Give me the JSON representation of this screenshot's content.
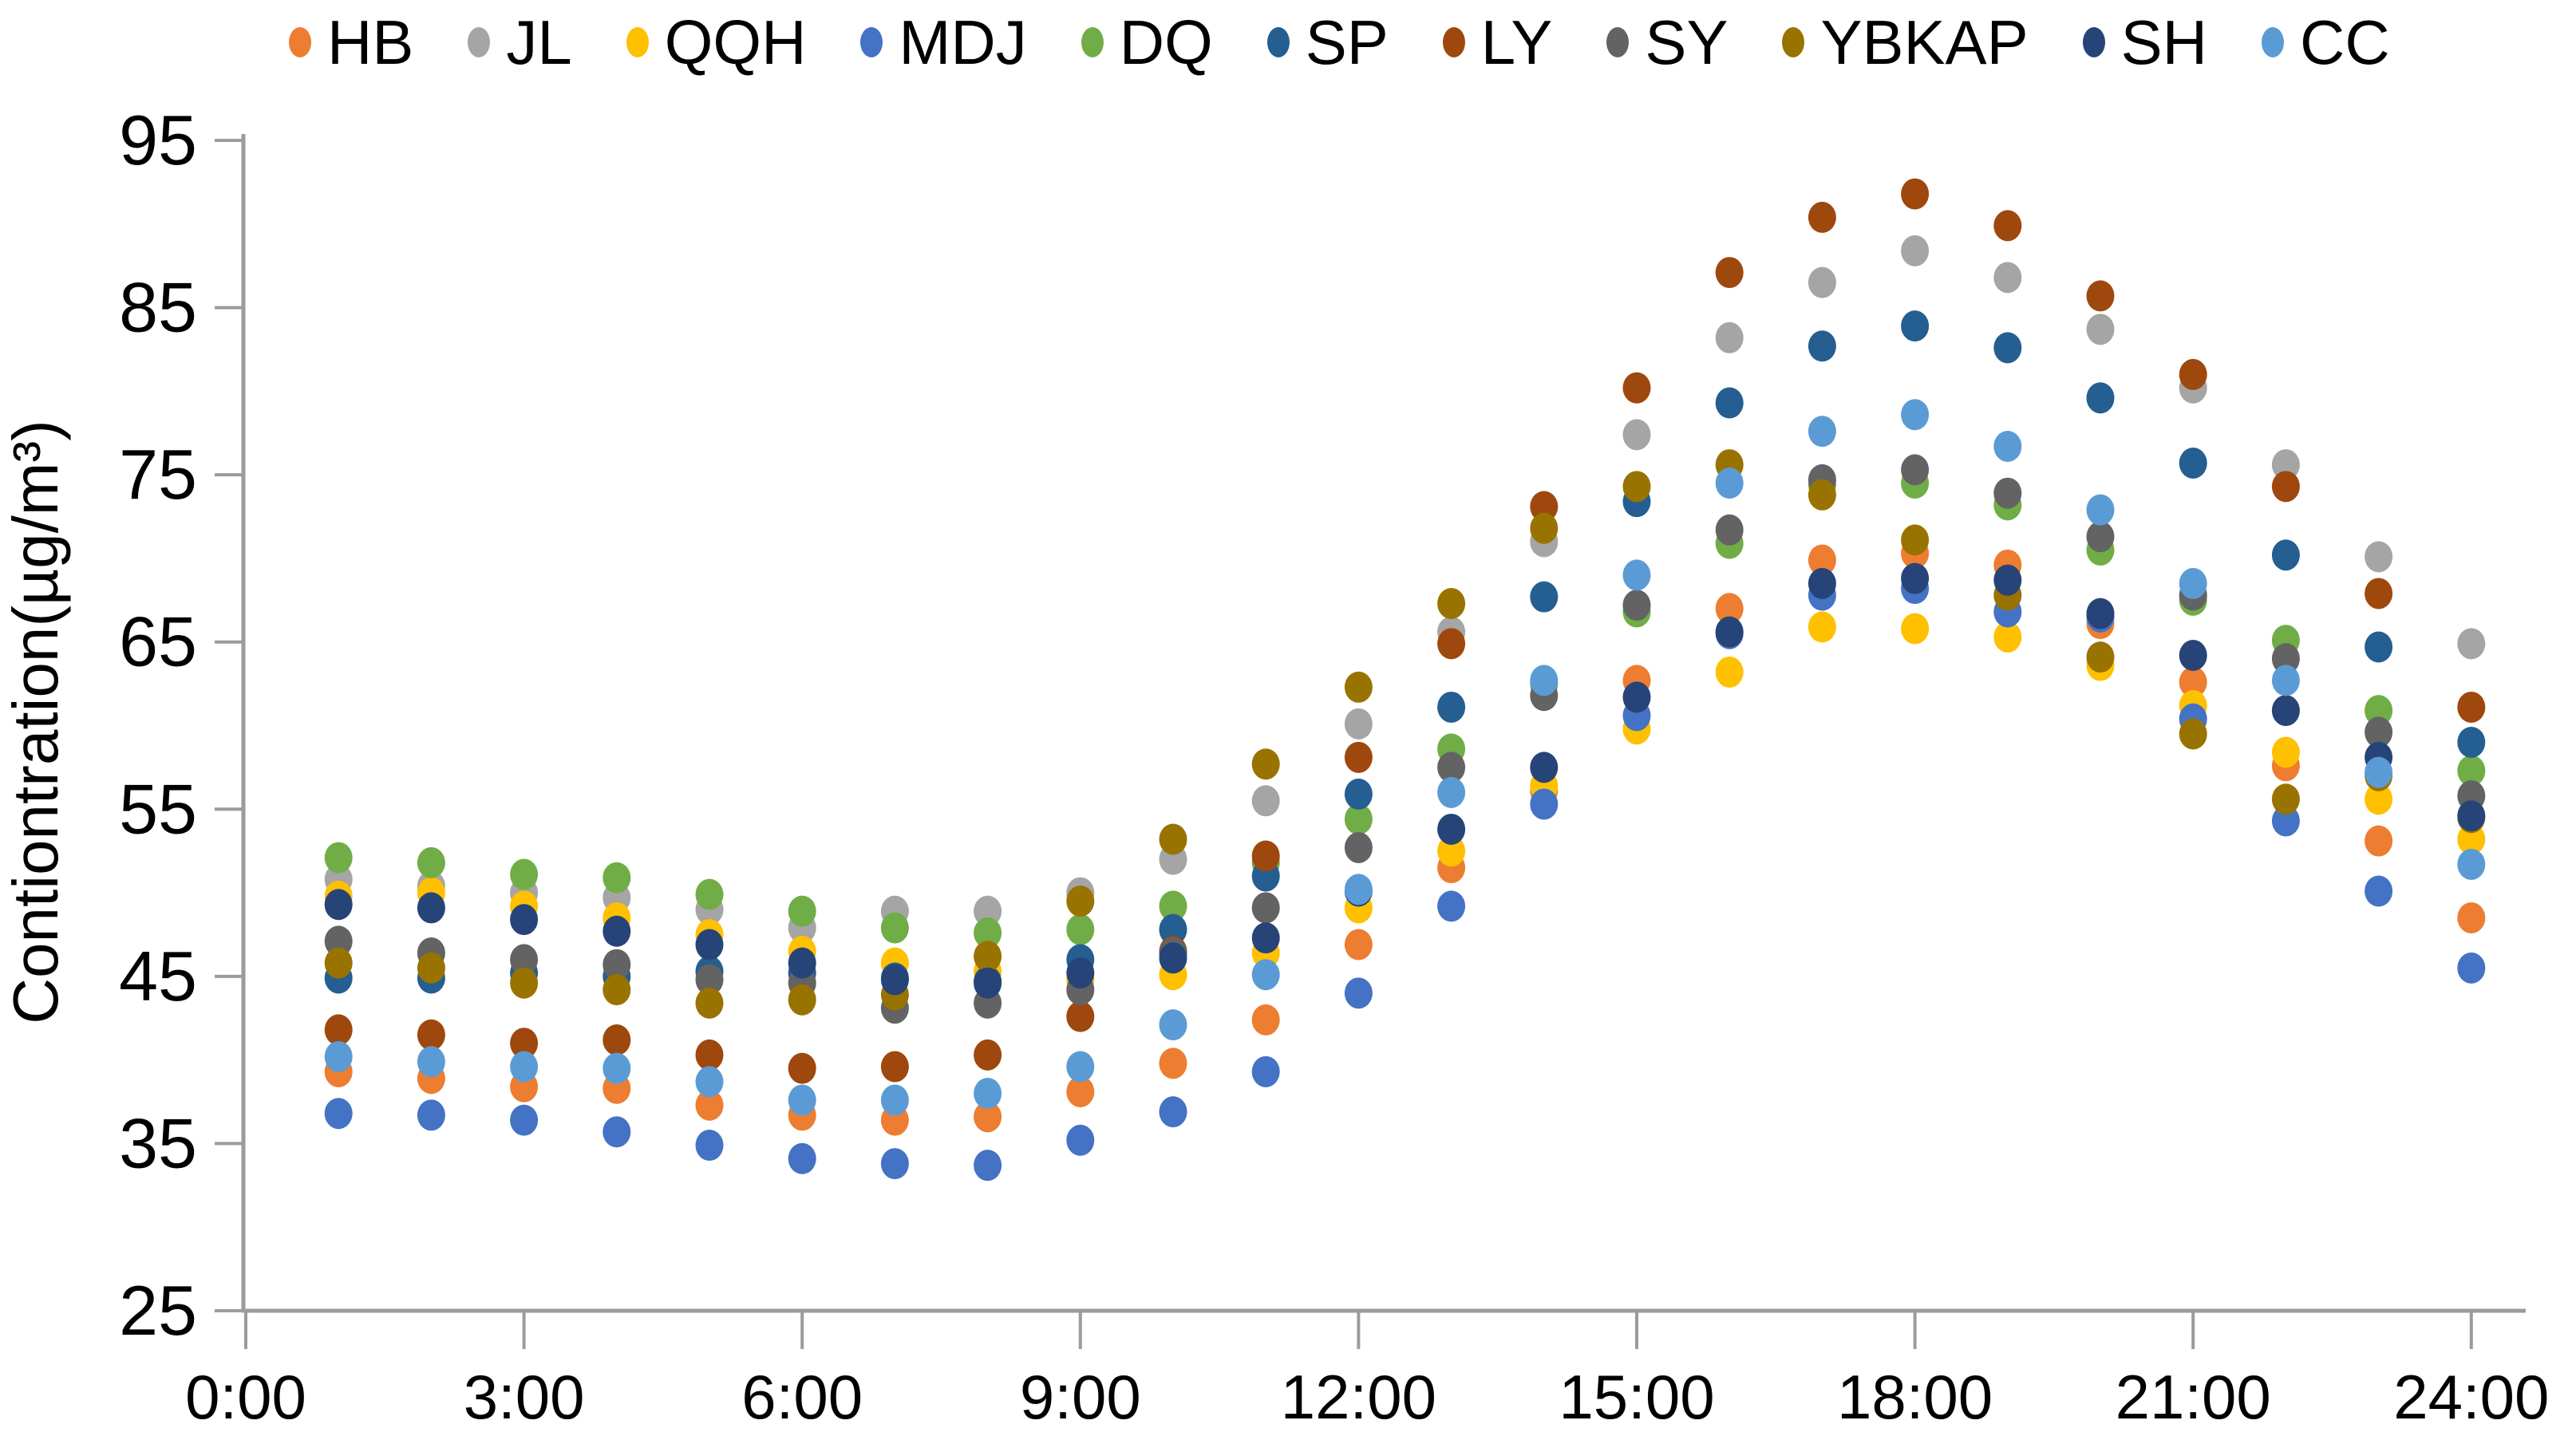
{
  "figure": {
    "background": "#FFFFFF"
  },
  "chart_data": {
    "type": "scatter",
    "title": "",
    "xlabel": "",
    "ylabel": "Contiontration(µg/m³)",
    "ylim": [
      25,
      95
    ],
    "y_ticks": [
      25,
      35,
      45,
      55,
      65,
      75,
      85,
      95
    ],
    "x_tick_labels": [
      "0:00",
      "3:00",
      "6:00",
      "9:00",
      "12:00",
      "15:00",
      "18:00",
      "21:00",
      "24:00"
    ],
    "x_tick_hours": [
      0,
      3,
      6,
      9,
      12,
      15,
      18,
      21,
      24
    ],
    "xlim_hours": [
      0,
      24.6
    ],
    "grid": false,
    "legend_position": "top",
    "axis_color": "#9B9B9B",
    "text_color": "#000000",
    "x_hours": [
      1,
      2,
      3,
      4,
      5,
      6,
      7,
      8,
      9,
      10,
      11,
      12,
      13,
      14,
      15,
      16,
      17,
      18,
      19,
      20,
      21,
      22,
      23,
      24
    ],
    "series": [
      {
        "name": "HB",
        "color": "#ED7D31",
        "values": [
          39.3,
          38.9,
          38.4,
          38.3,
          37.3,
          36.7,
          36.4,
          36.6,
          38.1,
          39.8,
          42.4,
          46.9,
          51.5,
          56.1,
          62.7,
          67.0,
          69.9,
          70.3,
          69.6,
          66.1,
          62.6,
          57.6,
          53.1,
          48.5
        ]
      },
      {
        "name": "JL",
        "color": "#A5A5A5",
        "values": [
          50.8,
          50.4,
          50.0,
          49.7,
          49.0,
          47.9,
          48.9,
          48.9,
          50.0,
          52.0,
          55.5,
          60.1,
          65.6,
          71.0,
          77.4,
          83.2,
          86.5,
          88.4,
          86.8,
          83.7,
          80.2,
          75.6,
          70.1,
          64.9
        ]
      },
      {
        "name": "QQH",
        "color": "#FFC000",
        "values": [
          49.8,
          50.0,
          49.2,
          48.5,
          47.5,
          46.5,
          45.8,
          45.3,
          44.8,
          45.1,
          46.4,
          49.1,
          52.5,
          56.4,
          59.8,
          63.2,
          65.9,
          65.8,
          65.3,
          63.6,
          61.2,
          58.4,
          55.6,
          53.2
        ]
      },
      {
        "name": "MDJ",
        "color": "#4472C4",
        "values": [
          36.8,
          36.7,
          36.4,
          35.7,
          34.9,
          34.1,
          33.8,
          33.7,
          35.2,
          36.9,
          39.3,
          44.0,
          49.2,
          55.3,
          60.6,
          65.5,
          67.8,
          68.2,
          66.8,
          66.5,
          60.4,
          54.3,
          50.1,
          45.5
        ]
      },
      {
        "name": "DQ",
        "color": "#70AD47",
        "values": [
          52.1,
          51.8,
          51.1,
          50.9,
          49.9,
          48.9,
          47.9,
          47.6,
          47.8,
          49.2,
          51.8,
          54.4,
          58.6,
          62.5,
          66.8,
          70.9,
          74.4,
          74.5,
          73.2,
          70.5,
          67.5,
          65.1,
          60.9,
          57.3
        ]
      },
      {
        "name": "SP",
        "color": "#255E91",
        "values": [
          44.9,
          44.9,
          45.2,
          45.0,
          45.3,
          45.2,
          44.9,
          44.7,
          46.0,
          47.8,
          51.0,
          55.9,
          61.1,
          67.7,
          73.4,
          79.3,
          82.7,
          83.9,
          82.6,
          79.6,
          75.7,
          70.2,
          64.7,
          59.0
        ]
      },
      {
        "name": "LY",
        "color": "#9E480E",
        "values": [
          41.8,
          41.5,
          41.0,
          41.2,
          40.3,
          39.5,
          39.6,
          40.3,
          42.6,
          46.5,
          52.2,
          58.1,
          64.9,
          73.1,
          80.2,
          87.1,
          90.4,
          91.8,
          89.9,
          85.7,
          81.0,
          74.3,
          67.9,
          61.1
        ]
      },
      {
        "name": "SY",
        "color": "#636363",
        "values": [
          47.1,
          46.4,
          46.0,
          45.7,
          44.8,
          44.6,
          43.1,
          43.4,
          44.2,
          46.4,
          49.1,
          52.7,
          57.5,
          61.8,
          67.2,
          71.7,
          74.7,
          75.3,
          73.9,
          71.3,
          67.8,
          64.0,
          59.6,
          55.8
        ]
      },
      {
        "name": "YBKAP",
        "color": "#997300",
        "values": [
          45.8,
          45.5,
          44.6,
          44.2,
          43.4,
          43.6,
          43.9,
          46.2,
          49.5,
          53.2,
          57.7,
          62.3,
          67.3,
          71.8,
          74.3,
          75.6,
          73.8,
          71.1,
          67.8,
          64.1,
          59.5,
          55.6,
          57.0,
          54.5
        ]
      },
      {
        "name": "SH",
        "color": "#264478",
        "values": [
          49.3,
          49.1,
          48.4,
          47.7,
          46.9,
          45.8,
          44.8,
          44.6,
          45.2,
          46.1,
          47.3,
          50.1,
          53.8,
          57.5,
          61.7,
          65.6,
          68.5,
          68.8,
          68.7,
          66.7,
          64.2,
          60.9,
          58.1,
          54.6
        ]
      },
      {
        "name": "CC",
        "color": "#5B9BD5",
        "values": [
          40.2,
          39.9,
          39.6,
          39.5,
          38.7,
          37.6,
          37.6,
          38.0,
          39.6,
          42.1,
          45.1,
          50.2,
          56.0,
          62.7,
          69.0,
          74.5,
          77.6,
          78.6,
          76.7,
          72.9,
          68.5,
          62.7,
          57.2,
          51.7
        ]
      }
    ]
  }
}
